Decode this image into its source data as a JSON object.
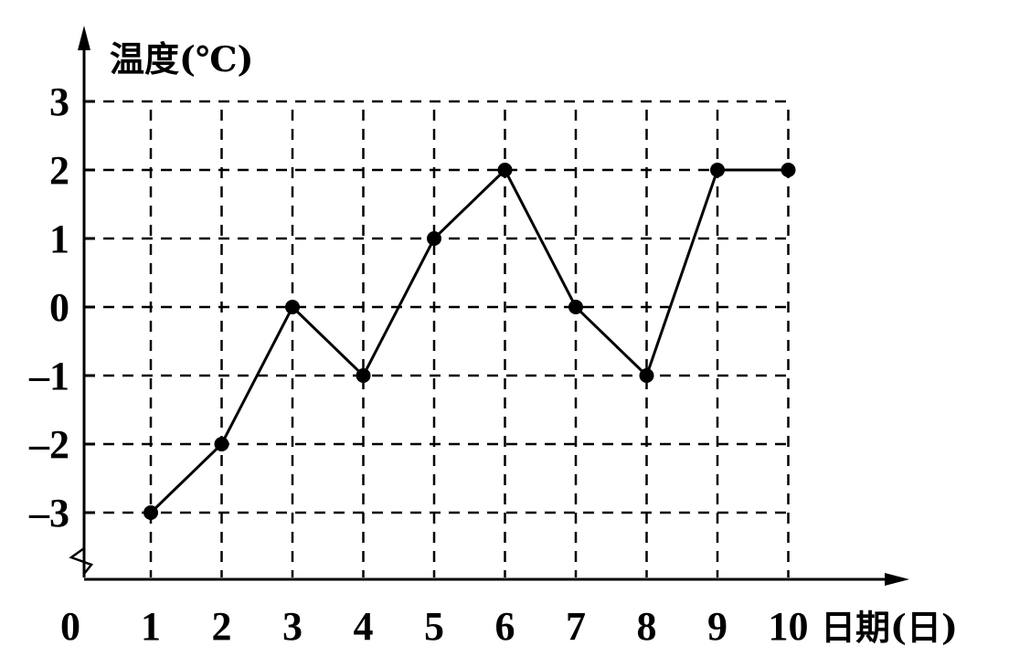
{
  "chart_data": {
    "type": "line",
    "ylabel": "温度(℃)",
    "xlabel": "日期(日)",
    "origin_label": "0",
    "x": [
      1,
      2,
      3,
      4,
      5,
      6,
      7,
      8,
      9,
      10
    ],
    "x_tick_labels": [
      "1",
      "2",
      "3",
      "4",
      "5",
      "6",
      "7",
      "8",
      "9",
      "10"
    ],
    "y_tick_values": [
      3,
      2,
      1,
      0,
      -1,
      -2,
      -3
    ],
    "y_tick_labels": [
      "3",
      "2",
      "1",
      "0",
      "–1",
      "–2",
      "–3"
    ],
    "series": [
      {
        "values": [
          -3,
          -2,
          0,
          -1,
          1,
          2,
          0,
          -1,
          2,
          2
        ]
      }
    ],
    "ylim": [
      -3,
      3
    ],
    "grid": true,
    "axis_break": true
  }
}
